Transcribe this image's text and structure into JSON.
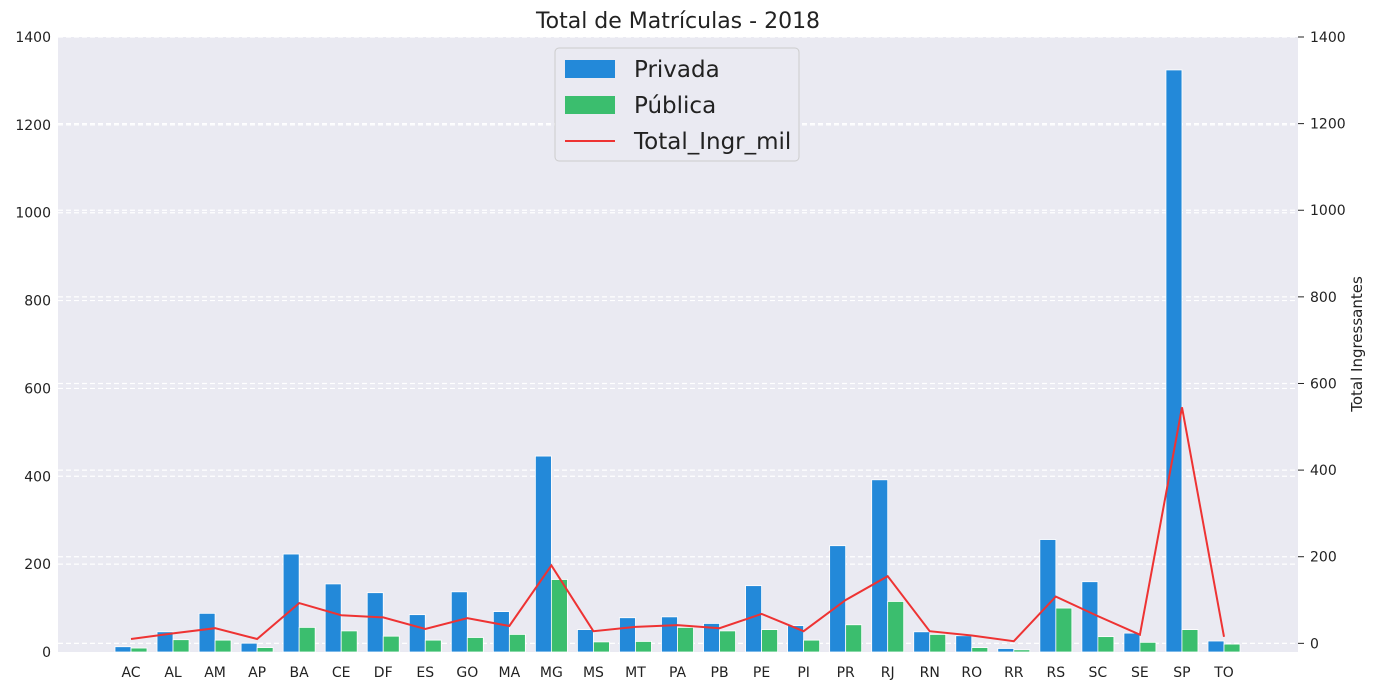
{
  "chart_data": {
    "type": "bar",
    "title": "Total de Matrículas - 2018",
    "xlabel": "",
    "ylabel": "",
    "ylabel_right": "Total Ingressantes",
    "categories": [
      "AC",
      "AL",
      "AM",
      "AP",
      "BA",
      "CE",
      "DF",
      "ES",
      "GO",
      "MA",
      "MG",
      "MS",
      "MT",
      "PA",
      "PB",
      "PE",
      "PI",
      "PR",
      "RJ",
      "RN",
      "RO",
      "RR",
      "RS",
      "SC",
      "SE",
      "SP",
      "TO"
    ],
    "ylim": [
      0,
      1400
    ],
    "yticks": [
      0,
      200,
      400,
      600,
      800,
      1000,
      1200,
      1400
    ],
    "ylim_right": [
      -20,
      1400
    ],
    "yticks_right": [
      0,
      200,
      400,
      600,
      800,
      1000,
      1200,
      1400
    ],
    "grid": true,
    "legend_position": "top-center",
    "series": [
      {
        "name": "Privada",
        "kind": "bar",
        "axis": "left",
        "color": "#2389d9",
        "values": [
          12,
          46,
          88,
          20,
          223,
          155,
          135,
          85,
          137,
          92,
          446,
          51,
          78,
          80,
          65,
          151,
          60,
          242,
          392,
          46,
          37,
          8,
          256,
          160,
          43,
          1325,
          25
        ]
      },
      {
        "name": "Pública",
        "kind": "bar",
        "axis": "left",
        "color": "#3bbe6e",
        "values": [
          9,
          28,
          27,
          10,
          56,
          48,
          36,
          27,
          33,
          40,
          165,
          23,
          24,
          56,
          48,
          51,
          27,
          62,
          115,
          40,
          10,
          5,
          100,
          35,
          22,
          51,
          18
        ]
      },
      {
        "name": "Total_Ingr_mil",
        "kind": "line",
        "axis": "right",
        "color": "#ee3333",
        "values": [
          10,
          23,
          35,
          10,
          93,
          65,
          60,
          33,
          58,
          40,
          180,
          28,
          38,
          42,
          35,
          68,
          28,
          100,
          155,
          28,
          18,
          5,
          108,
          63,
          20,
          545,
          15
        ]
      }
    ]
  }
}
